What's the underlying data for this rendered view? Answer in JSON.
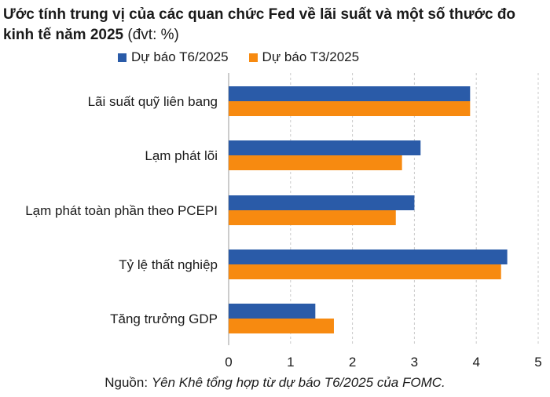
{
  "title": {
    "main": "Ước tính trung vị của các quan chức Fed về lãi suất và một số thước đo kinh tế năm 2025",
    "unit": "(đvt: %)"
  },
  "legend": [
    {
      "label": "Dự báo T6/2025",
      "color": "#2a5ba8"
    },
    {
      "label": "Dự báo T3/2025",
      "color": "#f78a10"
    }
  ],
  "source": {
    "prefix": "Nguồn:",
    "text": "Yên Khê tổng hợp từ dự báo T6/2025 của FOMC."
  },
  "chart_data": {
    "type": "bar",
    "orientation": "horizontal",
    "categories": [
      "Lãi suất quỹ liên bang",
      "Lạm phát lõi",
      "Lạm phát toàn phần theo PCEPI",
      "Tỷ lệ thất nghiệp",
      "Tăng trưởng GDP"
    ],
    "series": [
      {
        "name": "Dự báo T6/2025",
        "values": [
          3.9,
          3.1,
          3.0,
          4.5,
          1.4
        ],
        "color": "#2a5ba8"
      },
      {
        "name": "Dự báo T3/2025",
        "values": [
          3.9,
          2.8,
          2.7,
          4.4,
          1.7
        ],
        "color": "#f78a10"
      }
    ],
    "xlim": [
      0,
      5
    ],
    "xticks": [
      "0",
      "1",
      "2",
      "3",
      "4",
      "5"
    ],
    "grid": "vertical dashed",
    "legend_position": "top"
  }
}
